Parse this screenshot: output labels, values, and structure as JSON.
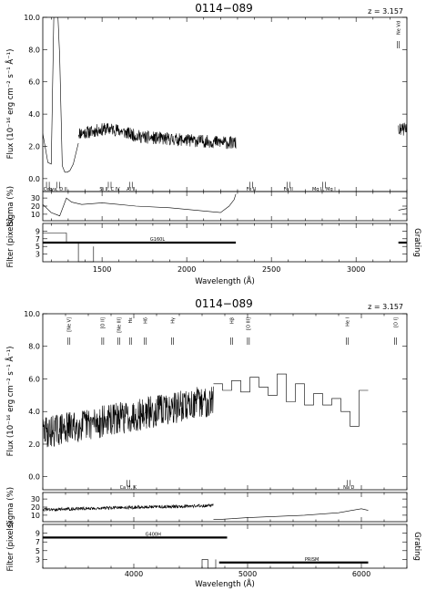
{
  "chart_data": [
    {
      "type": "line",
      "title": "0114−089",
      "redshift_label": "z = 3.157",
      "xlabel": "Wavelength (Å)",
      "xlim": [
        1150,
        3300
      ],
      "xticks": [
        1500,
        2000,
        2500,
        3000
      ],
      "flux_panel": {
        "ylabel": "Flux (10⁻¹⁶ erg cm⁻² s⁻¹ Å⁻¹)",
        "ylim": [
          -0.8,
          10.0
        ],
        "yticks": [
          0.0,
          2.0,
          4.0,
          6.0,
          8.0,
          10.0
        ],
        "series": [
          {
            "x": [
              1150,
              1180,
              1200,
              1215,
              1240,
              1250,
              1265,
              1280,
              1295,
              1310,
              1330,
              1360
            ],
            "y": [
              2.8,
              1.0,
              0.9,
              10.0,
              10.0,
              7.5,
              0.8,
              0.4,
              0.4,
              0.5,
              0.9,
              2.2
            ]
          },
          {
            "x_start": 1360,
            "x_end": 2290,
            "mean_start": 2.8,
            "mean_end": 2.2,
            "noise": 0.8,
            "bump_center": 1550,
            "bump_height": 0.4
          },
          {
            "x_start": 3250,
            "x_end": 3300,
            "mean_start": 3.0,
            "mean_end": 3.1,
            "noise": 0.8
          }
        ],
        "features_below": [
          {
            "x": 1180,
            "label": "Ceo"
          },
          {
            "x": 1240,
            "label": "Lya, D II"
          },
          {
            "x": 1545,
            "label": "Si II, C IV"
          },
          {
            "x": 1670,
            "label": "Al II"
          },
          {
            "x": 2380,
            "label": "Fe II"
          },
          {
            "x": 2600,
            "label": "Fe II"
          },
          {
            "x": 2810,
            "label": "Mg II, Mg I"
          }
        ],
        "features_above": [
          {
            "x": 3250,
            "label": "Ne Vd"
          }
        ]
      },
      "sigma_panel": {
        "ylabel": "Sigma (%)",
        "ylim": [
          2,
          38
        ],
        "yticks": [
          10,
          20,
          30
        ],
        "series": [
          {
            "x": [
              1150,
              1200,
              1250,
              1290,
              1320,
              1380,
              1500,
              1700,
              1900,
              2100,
              2200,
              2250,
              2280,
              2290
            ],
            "y": [
              22,
              12,
              8,
              30,
              25,
              22,
              24,
              20,
              18,
              14,
              12,
              20,
              28,
              35
            ]
          },
          {
            "x": [
              3250,
              3300
            ],
            "y": [
              15,
              17
            ]
          }
        ]
      },
      "filter_panel": {
        "ylabel": "Filter (pixels)",
        "right_label": "Grating",
        "ylim": [
          1,
          11
        ],
        "yticks": [
          3,
          5,
          7,
          9
        ],
        "grating_bars": [
          {
            "x_start": 1150,
            "x_end": 2290,
            "label": "G160L"
          },
          {
            "x_start": 3250,
            "x_end": 3300,
            "label": ""
          }
        ],
        "filter_step": {
          "x": [
            1150,
            1290,
            1290,
            1360,
            1360,
            1450,
            1450
          ],
          "y": [
            8.5,
            8.5,
            6,
            6,
            1,
            1,
            5
          ]
        }
      }
    },
    {
      "type": "line",
      "title": "0114−089",
      "redshift_label": "z = 3.157",
      "xlabel": "Wavelength (Å)",
      "xlim": [
        3200,
        6400
      ],
      "xticks": [
        4000,
        5000,
        6000
      ],
      "flux_panel": {
        "ylabel": "Flux (10⁻¹⁶ erg cm⁻² s⁻¹ Å⁻¹)",
        "ylim": [
          -0.8,
          10.0
        ],
        "yticks": [
          0.0,
          2.0,
          4.0,
          6.0,
          8.0,
          10.0
        ],
        "series": [
          {
            "x_start": 3200,
            "x_end": 4700,
            "mean_start": 2.7,
            "mean_end": 4.7,
            "noise": 2.0
          },
          {
            "x": [
              4700,
              4780,
              4780,
              4860,
              4860,
              4940,
              4940,
              5020,
              5020,
              5100,
              5100,
              5180,
              5180,
              5260,
              5260,
              5340,
              5340,
              5420,
              5420,
              5500,
              5500,
              5580,
              5580,
              5660,
              5660,
              5740,
              5740,
              5820,
              5820,
              5900,
              5900,
              5980,
              5980,
              6060
            ],
            "y": [
              5.7,
              5.7,
              5.3,
              5.3,
              5.9,
              5.9,
              5.2,
              5.2,
              6.1,
              6.1,
              5.5,
              5.5,
              5.0,
              5.0,
              6.3,
              6.3,
              4.6,
              4.6,
              5.7,
              5.7,
              4.4,
              4.4,
              5.1,
              5.1,
              4.4,
              4.4,
              4.8,
              4.8,
              4.0,
              4.0,
              3.1,
              3.1,
              5.3,
              5.3
            ]
          }
        ],
        "features_below": [
          {
            "x": 3950,
            "label": "Ca H, K"
          },
          {
            "x": 5890,
            "label": "Na D"
          }
        ],
        "features_above": [
          {
            "x": 3430,
            "label": "[Ne V]"
          },
          {
            "x": 3727,
            "label": "[O II]"
          },
          {
            "x": 3869,
            "label": "[Ne III]"
          },
          {
            "x": 3970,
            "label": "Hε"
          },
          {
            "x": 4101,
            "label": "Hδ"
          },
          {
            "x": 4340,
            "label": "Hγ"
          },
          {
            "x": 4861,
            "label": "Hβ"
          },
          {
            "x": 5007,
            "label": "[O III]"
          },
          {
            "x": 5876,
            "label": "He I"
          },
          {
            "x": 6300,
            "label": "[O I]"
          }
        ]
      },
      "sigma_panel": {
        "ylabel": "Sigma (%)",
        "ylim": [
          2,
          38
        ],
        "yticks": [
          10,
          20,
          30
        ],
        "series": [
          {
            "x_start": 3200,
            "x_end": 4700,
            "mean_start": 17,
            "mean_end": 22,
            "noise": 4.0
          },
          {
            "x": [
              4700,
              4780,
              5000,
              5500,
              5800,
              6000,
              6060
            ],
            "y": [
              5,
              5,
              7,
              10,
              13,
              18,
              16
            ]
          }
        ]
      },
      "filter_panel": {
        "ylabel": "Filter (pixels)",
        "right_label": "Grating",
        "ylim": [
          1,
          11
        ],
        "yticks": [
          3,
          5,
          7,
          9
        ],
        "grating_bars": [
          {
            "x_start": 3200,
            "x_end": 4820,
            "label": "G400H"
          },
          {
            "x_start": 4750,
            "x_end": 6060,
            "label": "PRISM"
          }
        ],
        "filter_step": {
          "x": [
            4600,
            4600,
            4650,
            4650,
            4720,
            4720
          ],
          "y": [
            1,
            3,
            3,
            1,
            1,
            3
          ]
        }
      }
    }
  ]
}
